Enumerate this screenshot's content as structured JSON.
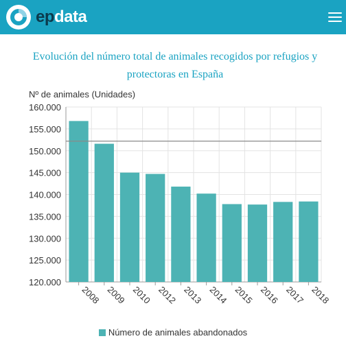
{
  "header": {
    "brand_ep": "ep",
    "brand_data": "data",
    "accent_color": "#1aa3c2",
    "brand_dark_color": "#0b3a4c",
    "menu_icon": "hamburger-icon"
  },
  "chart_data": {
    "type": "bar",
    "title": "Evolución del número total de animales recogidos por refugios y protectoras en España",
    "ylabel": "Nº de animales (Unidades)",
    "xlabel": "",
    "categories": [
      "2008",
      "2009",
      "2010",
      "2012",
      "2013",
      "2014",
      "2015",
      "2016",
      "2017",
      "2018"
    ],
    "series": [
      {
        "name": "Número de animales abandonados",
        "color": "#4db3b4",
        "values": [
          156800,
          151600,
          145000,
          144700,
          141800,
          140200,
          137800,
          137700,
          138300,
          138400
        ]
      }
    ],
    "reference_line": 152200,
    "ylim": [
      120000,
      160000
    ],
    "yticks": [
      {
        "value": 160000,
        "label": "160.000"
      },
      {
        "value": 155000,
        "label": "155.000"
      },
      {
        "value": 150000,
        "label": "150.000"
      },
      {
        "value": 145000,
        "label": "145.000"
      },
      {
        "value": 140000,
        "label": "140.000"
      },
      {
        "value": 135000,
        "label": "135.000"
      },
      {
        "value": 130000,
        "label": "130.000"
      },
      {
        "value": 125000,
        "label": "125.000"
      },
      {
        "value": 120000,
        "label": "120.000"
      }
    ],
    "grid": true,
    "legend_position": "bottom"
  }
}
